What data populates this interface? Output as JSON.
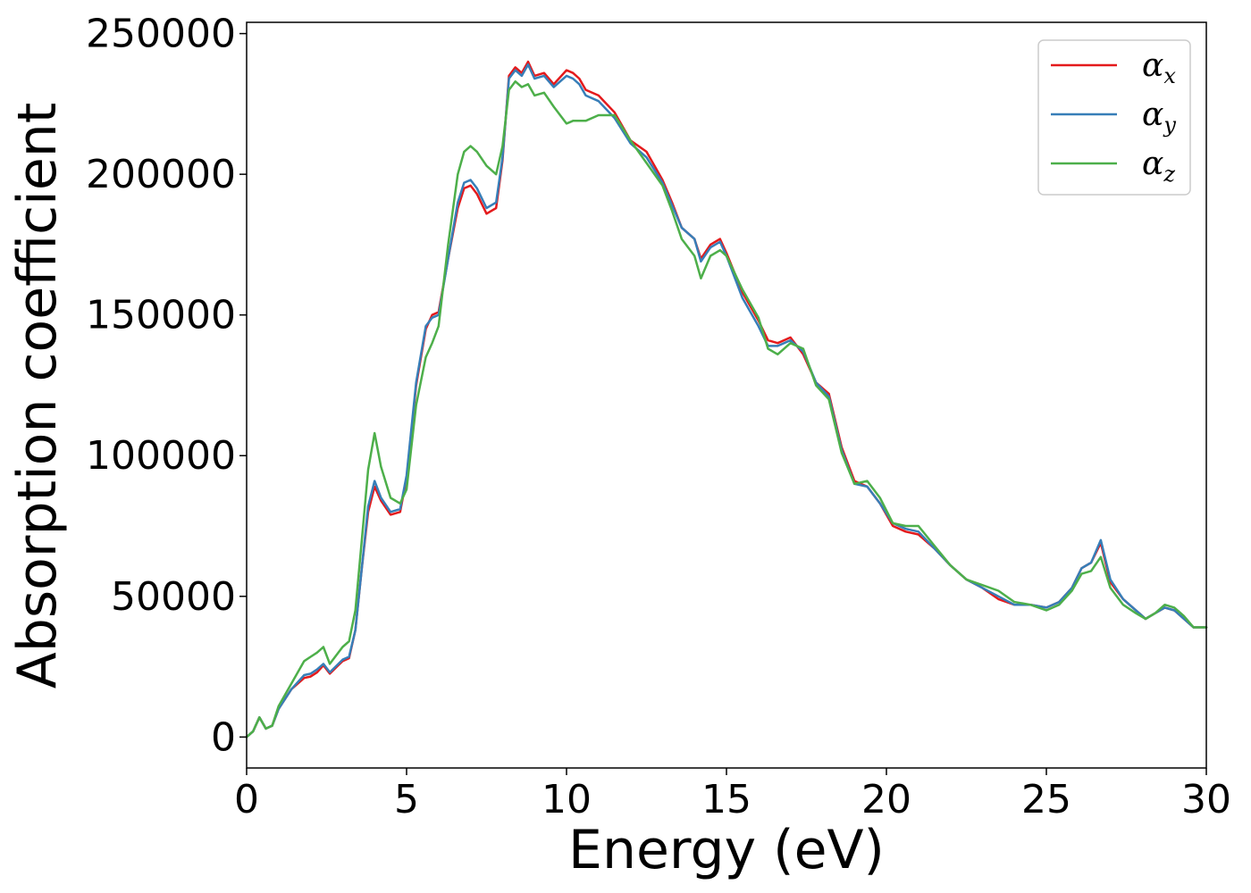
{
  "chart_data": {
    "type": "line",
    "title": "",
    "xlabel": "Energy (eV)",
    "ylabel": "Absorption coefficient",
    "xlim": [
      0,
      30
    ],
    "ylim": [
      -11000,
      254000
    ],
    "xticks": [
      "0",
      "5",
      "10",
      "15",
      "20",
      "25",
      "30"
    ],
    "xtick_values": [
      0,
      5,
      10,
      15,
      20,
      25,
      30
    ],
    "yticks": [
      "0",
      "50000",
      "100000",
      "150000",
      "200000",
      "250000"
    ],
    "ytick_values": [
      0,
      50000,
      100000,
      150000,
      200000,
      250000
    ],
    "grid": false,
    "legend_position": "upper-right",
    "x": [
      0,
      0.2,
      0.4,
      0.6,
      0.8,
      1.0,
      1.4,
      1.8,
      2.0,
      2.2,
      2.4,
      2.6,
      3.0,
      3.2,
      3.4,
      3.6,
      3.8,
      4.0,
      4.2,
      4.5,
      4.8,
      5.0,
      5.3,
      5.6,
      5.8,
      6.0,
      6.3,
      6.6,
      6.8,
      7.0,
      7.2,
      7.5,
      7.8,
      8.0,
      8.2,
      8.4,
      8.6,
      8.8,
      9.0,
      9.3,
      9.6,
      10.0,
      10.2,
      10.4,
      10.6,
      11.0,
      11.5,
      12.0,
      12.5,
      13.0,
      13.3,
      13.6,
      14.0,
      14.2,
      14.5,
      14.8,
      15.0,
      15.5,
      16.0,
      16.3,
      16.6,
      17.0,
      17.4,
      17.8,
      18.2,
      18.6,
      19.0,
      19.4,
      19.8,
      20.2,
      20.6,
      21.0,
      21.5,
      22.0,
      22.5,
      23.0,
      23.5,
      24.0,
      24.5,
      25.0,
      25.4,
      25.8,
      26.1,
      26.4,
      26.7,
      27.0,
      27.4,
      27.8,
      28.1,
      28.4,
      28.7,
      29.0,
      29.3,
      29.6,
      30.0
    ],
    "series": [
      {
        "name": "αx",
        "label_main": "α",
        "label_sub": "x",
        "color": "#e41a1c",
        "values": [
          0,
          2000,
          7000,
          3000,
          4000,
          10000,
          17000,
          21000,
          21500,
          23000,
          25500,
          22500,
          27000,
          28000,
          38000,
          60000,
          80000,
          89000,
          84000,
          79000,
          80000,
          92000,
          125000,
          145000,
          150000,
          151000,
          170000,
          188000,
          195000,
          196000,
          193000,
          186000,
          188000,
          205000,
          235000,
          238000,
          236000,
          240000,
          235000,
          236000,
          232000,
          237000,
          236000,
          234000,
          230000,
          228000,
          222000,
          212000,
          208000,
          198000,
          190000,
          181000,
          177000,
          170000,
          175000,
          177000,
          172000,
          158000,
          148000,
          141000,
          140000,
          142000,
          136000,
          126000,
          122000,
          103000,
          91000,
          89000,
          83000,
          75000,
          73000,
          72000,
          67000,
          61000,
          56000,
          53000,
          49000,
          47000,
          47000,
          46000,
          48000,
          53000,
          60000,
          62000,
          69000,
          55000,
          49000,
          45000,
          42000,
          44000,
          46000,
          45000,
          42000,
          39000,
          39000
        ]
      },
      {
        "name": "αy",
        "label_main": "α",
        "label_sub": "y",
        "color": "#377eb8",
        "values": [
          0,
          2000,
          7000,
          3000,
          4000,
          10000,
          17000,
          22000,
          22500,
          24000,
          26000,
          23000,
          27500,
          28500,
          38000,
          60000,
          82000,
          91000,
          85000,
          80000,
          81000,
          93000,
          126000,
          146000,
          149000,
          150000,
          170000,
          190000,
          197000,
          198000,
          195000,
          188000,
          190000,
          206000,
          234000,
          237000,
          235000,
          239000,
          234000,
          235000,
          231000,
          235000,
          234000,
          232000,
          228000,
          226000,
          220000,
          211000,
          206000,
          197000,
          189000,
          181000,
          177000,
          169000,
          174000,
          176000,
          171000,
          156000,
          146000,
          139000,
          139000,
          141000,
          137000,
          126000,
          121000,
          102000,
          90000,
          89000,
          83000,
          76000,
          74000,
          73000,
          67000,
          61000,
          56000,
          53000,
          50000,
          47000,
          47000,
          46000,
          48000,
          53000,
          60000,
          62000,
          70000,
          56000,
          49000,
          45000,
          42000,
          44000,
          46000,
          45000,
          42000,
          39000,
          39000
        ]
      },
      {
        "name": "αz",
        "label_main": "α",
        "label_sub": "z",
        "color": "#4daf4a",
        "values": [
          0,
          2000,
          7000,
          3000,
          4000,
          11000,
          19000,
          27000,
          28500,
          30000,
          32000,
          26000,
          32000,
          34000,
          45000,
          70000,
          95000,
          108000,
          96000,
          85000,
          83000,
          88000,
          118000,
          135000,
          140000,
          146000,
          175000,
          200000,
          208000,
          210000,
          208000,
          203000,
          200000,
          210000,
          230000,
          233000,
          231000,
          232000,
          228000,
          229000,
          224000,
          218000,
          219000,
          219000,
          219000,
          221000,
          221000,
          212000,
          204000,
          196000,
          187000,
          177000,
          171000,
          163000,
          171000,
          173000,
          171000,
          159000,
          149000,
          138000,
          136000,
          140000,
          138000,
          125000,
          120000,
          101000,
          90000,
          91000,
          85000,
          76000,
          75000,
          75000,
          68000,
          61000,
          56000,
          54000,
          52000,
          48000,
          47000,
          45000,
          47000,
          52000,
          58000,
          59000,
          64000,
          53000,
          47000,
          44000,
          42000,
          44000,
          47000,
          46000,
          43000,
          39000,
          39000
        ]
      }
    ]
  }
}
